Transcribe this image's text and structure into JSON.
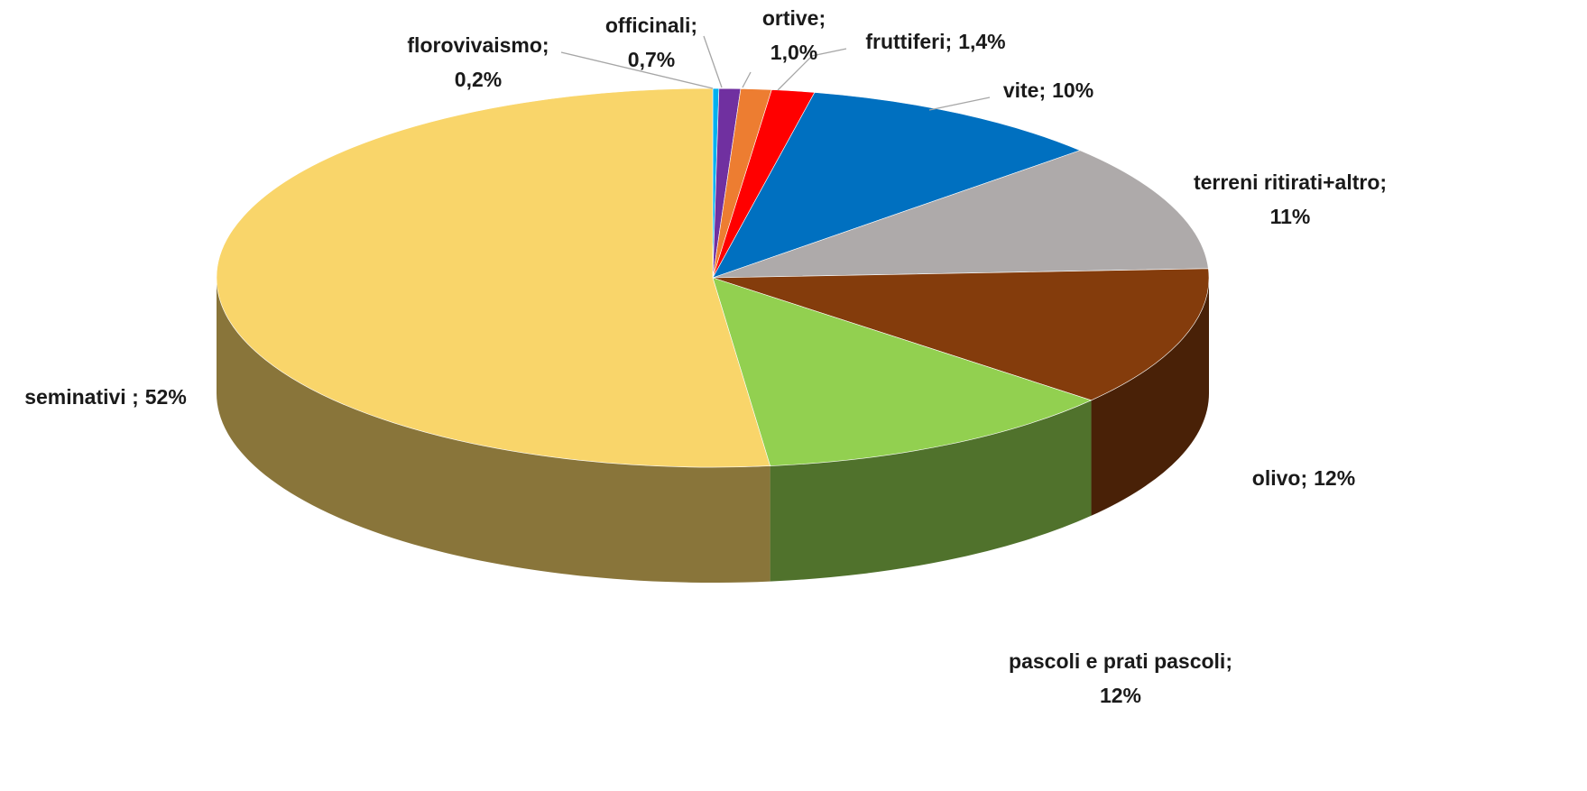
{
  "chart_data": {
    "type": "pie3d",
    "categories": [
      "florovivaismo;",
      "officinali;",
      "ortive;",
      "fruttiferi;",
      "vite;",
      "terreni ritirati+altro;",
      "olivo;",
      "pascoli e prati pascoli;",
      "seminativi ;"
    ],
    "values": [
      0.2,
      0.7,
      1.0,
      1.4,
      10,
      11,
      12,
      12,
      52
    ],
    "value_labels": [
      "0,2%",
      "0,7%",
      "1,0%",
      "1,4%",
      "10%",
      "11%",
      "12%",
      "12%",
      "52%"
    ],
    "colors": [
      "#00b0f0",
      "#7030a0",
      "#ed7d31",
      "#ff0000",
      "#0070c0",
      "#aeaaaa",
      "#843c0c",
      "#92d050",
      "#f9d56a"
    ]
  }
}
